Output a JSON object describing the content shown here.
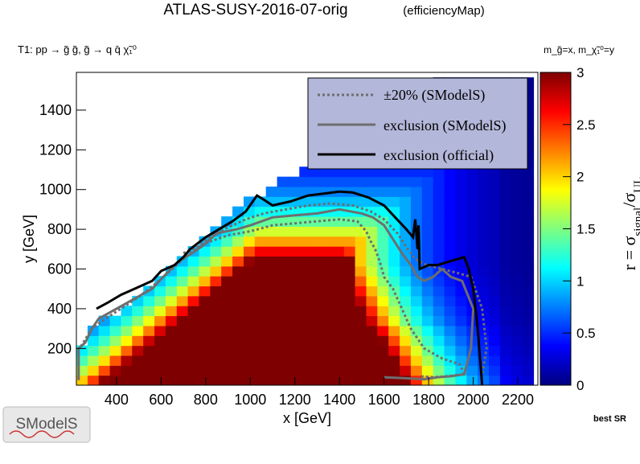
{
  "header": {
    "title": "ATLAS-SUSY-2016-07-orig",
    "subtitle": "(efficiencyMap)",
    "process": "T1: pp → g̃ g̃, g̃ → q q̄ χ̃₁⁰",
    "mass_label": "m_g̃=x, m_χ̃₁⁰=y"
  },
  "footer": {
    "logo_text": "SModelS",
    "best_sr": "best SR"
  },
  "colors": {
    "official": "#000000",
    "smodels": "#6e6e6e",
    "legend_bg": "#b3b7d9",
    "palette": [
      "#00007f",
      "#0000ff",
      "#007fff",
      "#00ffff",
      "#7fff7f",
      "#ffff00",
      "#ff7f00",
      "#ff0000",
      "#7f0000"
    ]
  },
  "chart_data": {
    "type": "heatmap",
    "xlabel": "x [GeV]",
    "ylabel": "y [GeV]",
    "zlabel": "r = σ_signal/σ_UL",
    "xlim": [
      220,
      2290
    ],
    "ylim": [
      15,
      1590
    ],
    "zlim": [
      0,
      3
    ],
    "xticks": [
      400,
      600,
      800,
      1000,
      1200,
      1400,
      1600,
      1800,
      2000,
      2200
    ],
    "yticks": [
      200,
      400,
      600,
      800,
      1000,
      1200,
      1400
    ],
    "zticks": [
      0,
      0.5,
      1,
      1.5,
      2,
      2.5,
      3
    ],
    "legend": {
      "position": "top-right",
      "entries": [
        "±20% (SModelS)",
        "exclusion (SModelS)",
        "exclusion (official)"
      ]
    },
    "exclusion_official": [
      [
        310,
        400
      ],
      [
        360,
        430
      ],
      [
        420,
        470
      ],
      [
        480,
        500
      ],
      [
        560,
        540
      ],
      [
        600,
        590
      ],
      [
        660,
        620
      ],
      [
        700,
        660
      ],
      [
        730,
        700
      ],
      [
        800,
        760
      ],
      [
        860,
        800
      ],
      [
        920,
        840
      ],
      [
        980,
        890
      ],
      [
        1030,
        970
      ],
      [
        1060,
        950
      ],
      [
        1100,
        920
      ],
      [
        1180,
        940
      ],
      [
        1260,
        970
      ],
      [
        1330,
        980
      ],
      [
        1400,
        990
      ],
      [
        1460,
        985
      ],
      [
        1530,
        960
      ],
      [
        1600,
        920
      ],
      [
        1650,
        860
      ],
      [
        1700,
        800
      ],
      [
        1730,
        760
      ],
      [
        1740,
        850
      ],
      [
        1750,
        700
      ],
      [
        1755,
        820
      ],
      [
        1760,
        600
      ],
      [
        1800,
        620
      ],
      [
        1840,
        620
      ],
      [
        1900,
        640
      ],
      [
        1960,
        660
      ],
      [
        1980,
        600
      ],
      [
        2000,
        500
      ],
      [
        2020,
        300
      ],
      [
        2040,
        15
      ]
    ],
    "exclusion_smodels": [
      [
        230,
        40
      ],
      [
        230,
        200
      ],
      [
        260,
        230
      ],
      [
        290,
        300
      ],
      [
        320,
        350
      ],
      [
        400,
        400
      ],
      [
        480,
        450
      ],
      [
        560,
        500
      ],
      [
        600,
        550
      ],
      [
        680,
        640
      ],
      [
        740,
        680
      ],
      [
        790,
        720
      ],
      [
        850,
        780
      ],
      [
        940,
        800
      ],
      [
        1000,
        820
      ],
      [
        1100,
        860
      ],
      [
        1200,
        870
      ],
      [
        1300,
        880
      ],
      [
        1400,
        900
      ],
      [
        1500,
        880
      ],
      [
        1550,
        860
      ],
      [
        1600,
        820
      ],
      [
        1640,
        750
      ],
      [
        1680,
        680
      ],
      [
        1720,
        620
      ],
      [
        1750,
        560
      ],
      [
        1780,
        540
      ],
      [
        1820,
        560
      ],
      [
        1860,
        600
      ],
      [
        1900,
        560
      ],
      [
        1950,
        540
      ],
      [
        2000,
        400
      ],
      [
        1990,
        200
      ],
      [
        1960,
        70
      ],
      [
        1900,
        60
      ],
      [
        1840,
        55
      ],
      [
        1780,
        45
      ],
      [
        1700,
        50
      ],
      [
        1600,
        55
      ]
    ],
    "plus20_smodels": [
      [
        240,
        210
      ],
      [
        290,
        300
      ],
      [
        350,
        350
      ],
      [
        420,
        400
      ],
      [
        500,
        460
      ],
      [
        580,
        530
      ],
      [
        660,
        610
      ],
      [
        740,
        690
      ],
      [
        820,
        760
      ],
      [
        900,
        810
      ],
      [
        980,
        850
      ],
      [
        1060,
        880
      ],
      [
        1160,
        900
      ],
      [
        1260,
        920
      ],
      [
        1360,
        930
      ],
      [
        1460,
        920
      ],
      [
        1540,
        890
      ],
      [
        1600,
        850
      ],
      [
        1660,
        780
      ],
      [
        1700,
        710
      ],
      [
        1740,
        650
      ],
      [
        1790,
        620
      ],
      [
        1860,
        600
      ],
      [
        1930,
        580
      ],
      [
        1990,
        560
      ],
      [
        2040,
        400
      ],
      [
        2060,
        200
      ],
      [
        2040,
        70
      ]
    ],
    "minus20_smodels": [
      [
        700,
        680
      ],
      [
        800,
        730
      ],
      [
        900,
        770
      ],
      [
        1000,
        790
      ],
      [
        1100,
        820
      ],
      [
        1200,
        830
      ],
      [
        1300,
        840
      ],
      [
        1400,
        850
      ],
      [
        1480,
        840
      ],
      [
        1520,
        790
      ],
      [
        1540,
        740
      ],
      [
        1560,
        700
      ],
      [
        1580,
        640
      ],
      [
        1600,
        560
      ],
      [
        1640,
        500
      ],
      [
        1680,
        400
      ],
      [
        1720,
        300
      ],
      [
        1780,
        200
      ],
      [
        1860,
        150
      ],
      [
        1940,
        120
      ],
      [
        1960,
        70
      ],
      [
        1880,
        60
      ],
      [
        1820,
        55
      ],
      [
        1760,
        60
      ]
    ]
  }
}
